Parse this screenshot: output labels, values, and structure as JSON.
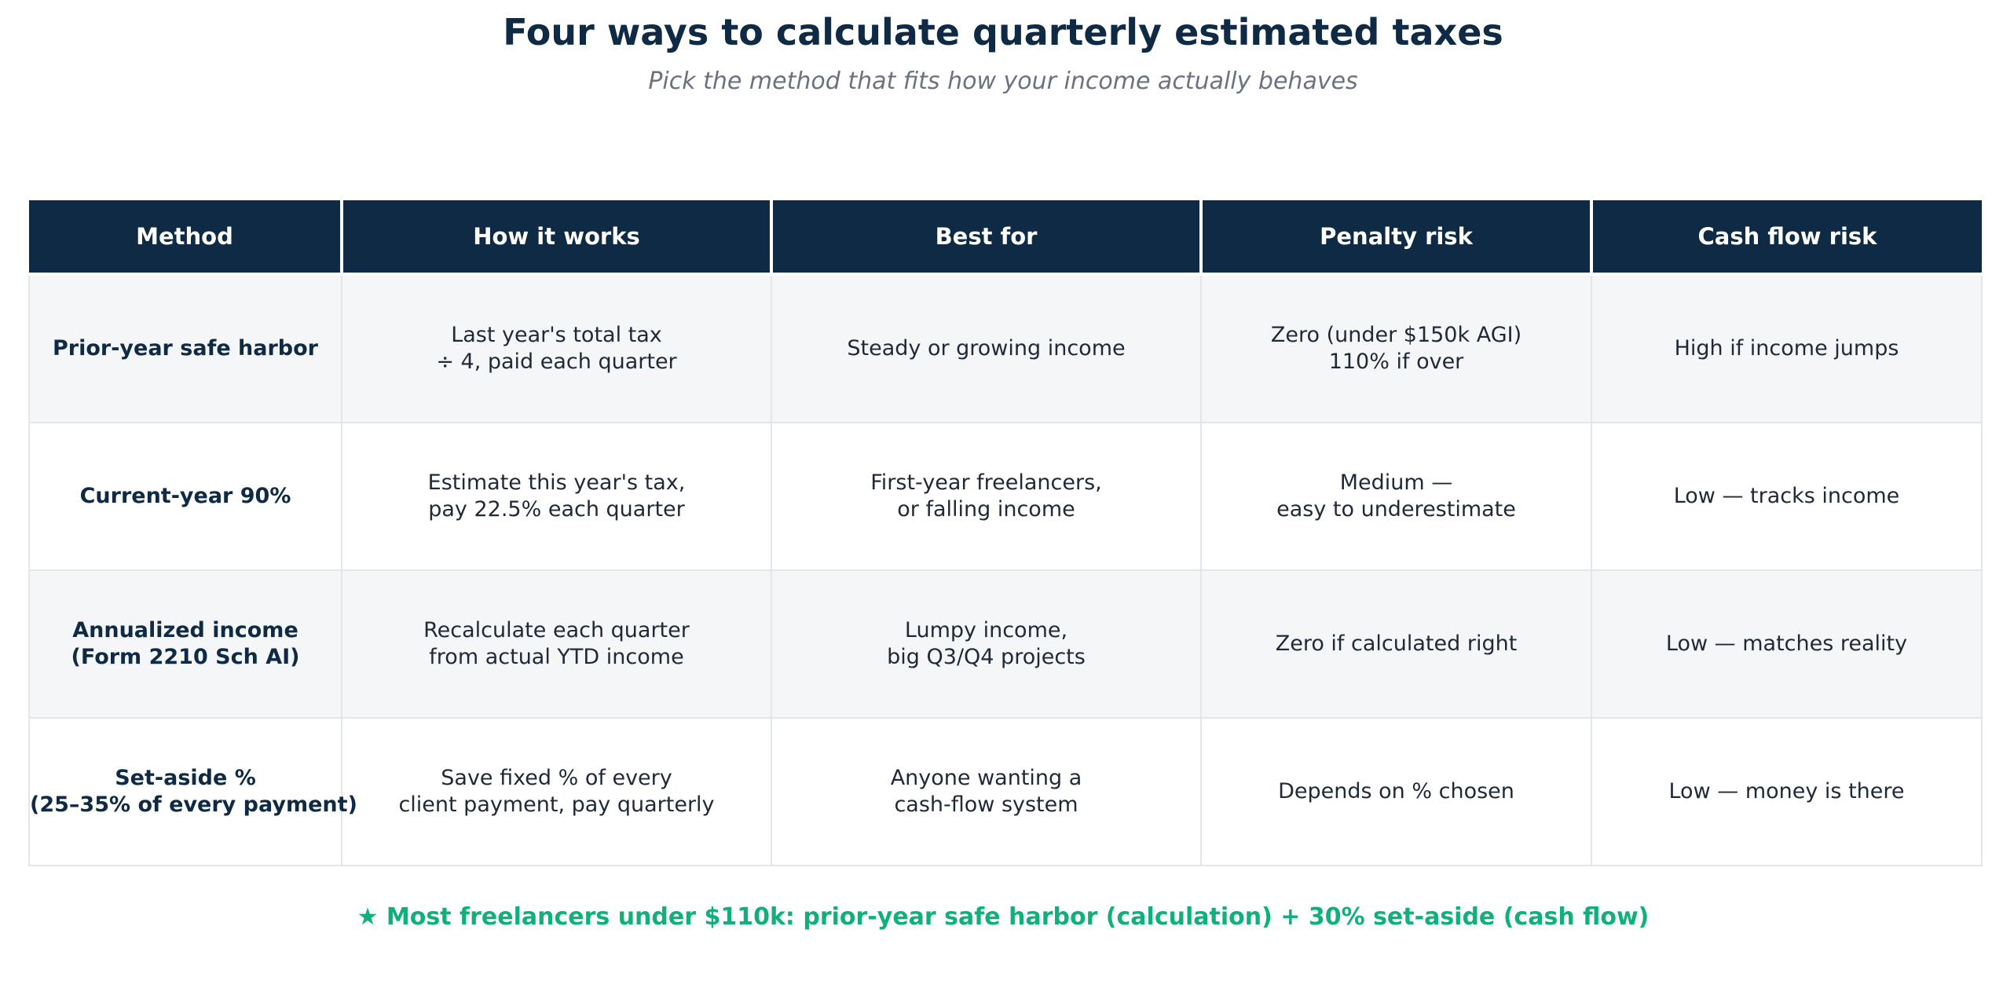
{
  "title": "Four ways to calculate quarterly estimated taxes",
  "subtitle": "Pick the method that fits how your income actually behaves",
  "colors": {
    "header_bg": "#0f2a44",
    "header_text": "#ffffff",
    "alt_row_bg": "#f4f6f8",
    "footnote": "#10b07a",
    "subtitle": "#6b7280"
  },
  "table": {
    "headers": [
      "Method",
      "How it works",
      "Best for",
      "Penalty risk",
      "Cash flow risk"
    ],
    "rows": [
      {
        "method": "Prior-year safe harbor",
        "how": "Last year's total tax\n÷ 4, paid each quarter",
        "best_for": "Steady or growing income",
        "penalty": "Zero (under $150k AGI)\n110% if over",
        "cash_flow": "High if income jumps"
      },
      {
        "method": "Current-year 90%",
        "how": "Estimate this year's tax,\npay 22.5% each quarter",
        "best_for": "First-year freelancers,\nor falling income",
        "penalty": "Medium —\neasy to underestimate",
        "cash_flow": "Low — tracks income"
      },
      {
        "method": "Annualized income\n(Form 2210 Sch AI)",
        "how": "Recalculate each quarter\nfrom actual YTD income",
        "best_for": "Lumpy income,\nbig Q3/Q4 projects",
        "penalty": "Zero if calculated right",
        "cash_flow": "Low — matches reality"
      },
      {
        "method": "Set-aside %\n(25–35% of every payment)",
        "how": "Save fixed % of every\nclient payment, pay quarterly",
        "best_for": "Anyone wanting a\ncash-flow system",
        "penalty": "Depends on % chosen",
        "cash_flow": "Low — money is there"
      }
    ]
  },
  "footnote": "★ Most freelancers under $110k: prior-year safe harbor (calculation) + 30% set-aside (cash flow)"
}
